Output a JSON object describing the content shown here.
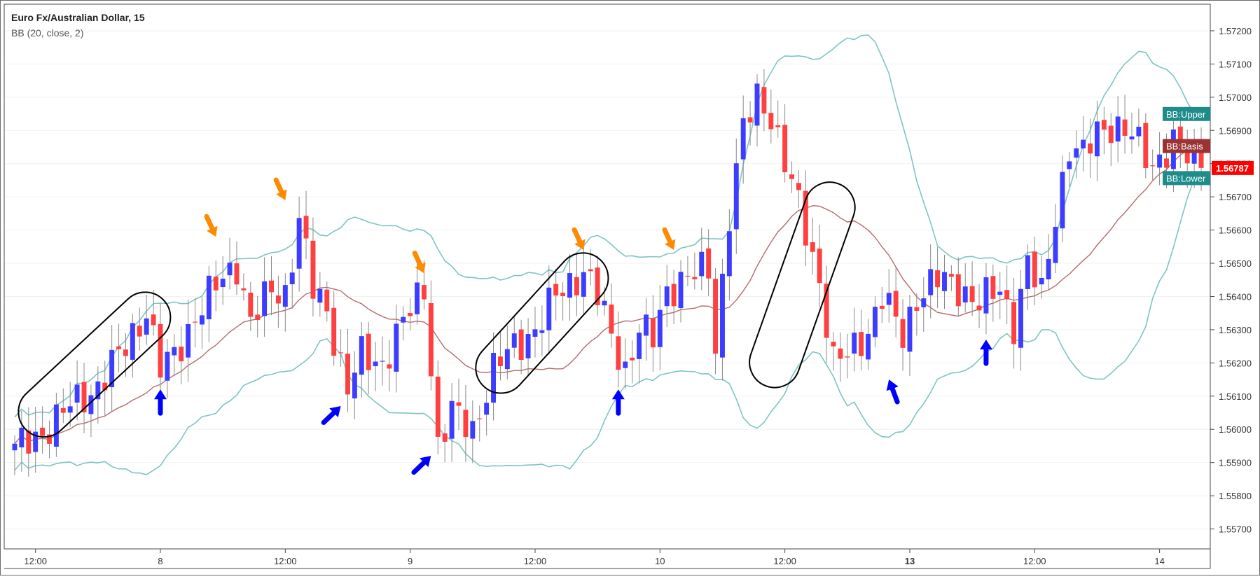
{
  "header": {
    "symbol_title": "Euro Fx/Australian Dollar, 15",
    "indicator_label": "BB (20, close, 2)"
  },
  "colors": {
    "bull_candle": "#3d3dff",
    "bear_candle": "#ff4040",
    "wick": "#8a8a8a",
    "bb_band": "#7ec4c4",
    "bb_basis": "#b56b6b",
    "price_tag": "#ff0000",
    "bb_tag": "#1f8c8c",
    "basis_tag": "#9b3333",
    "arrow_sell": "#ff8a00",
    "arrow_buy": "#0000ff",
    "consolidation_box": "#000000"
  },
  "chart_data": {
    "type": "candlestick",
    "ylim": [
      1.5564,
      1.5728
    ],
    "y_ticks": [
      1.572,
      1.571,
      1.57,
      1.569,
      1.568,
      1.567,
      1.566,
      1.565,
      1.564,
      1.563,
      1.562,
      1.561,
      1.56,
      1.559,
      1.558,
      1.557
    ],
    "y_tick_labels": [
      "1.57200",
      "1.57100",
      "1.57000",
      "1.56900",
      "1.56800",
      "1.56700",
      "1.56600",
      "1.56500",
      "1.56400",
      "1.56300",
      "1.56200",
      "1.56100",
      "1.56000",
      "1.55900",
      "1.55800",
      "1.55700"
    ],
    "x_ticks": [
      {
        "label": "12:00",
        "bold": false,
        "bar": 3
      },
      {
        "label": "8",
        "bold": false,
        "bar": 21
      },
      {
        "label": "12:00",
        "bold": false,
        "bar": 39
      },
      {
        "label": "9",
        "bold": false,
        "bar": 57
      },
      {
        "label": "12:00",
        "bold": false,
        "bar": 75
      },
      {
        "label": "10",
        "bold": false,
        "bar": 93
      },
      {
        "label": "12:00",
        "bold": false,
        "bar": 111
      },
      {
        "label": "13",
        "bold": true,
        "bar": 129
      },
      {
        "label": "12:00",
        "bold": false,
        "bar": 147
      },
      {
        "label": "14",
        "bold": false,
        "bar": 165
      }
    ],
    "bar_count": 172,
    "price_anchors": [
      [
        0,
        1.5594
      ],
      [
        4,
        1.5599
      ],
      [
        8,
        1.5607
      ],
      [
        12,
        1.5613
      ],
      [
        16,
        1.5625
      ],
      [
        19,
        1.5636
      ],
      [
        21,
        1.5618
      ],
      [
        23,
        1.5622
      ],
      [
        26,
        1.5634
      ],
      [
        29,
        1.5643
      ],
      [
        32,
        1.565
      ],
      [
        34,
        1.5632
      ],
      [
        37,
        1.5642
      ],
      [
        39,
        1.5641
      ],
      [
        41,
        1.5663
      ],
      [
        43,
        1.5642
      ],
      [
        45,
        1.5636
      ],
      [
        48,
        1.5612
      ],
      [
        50,
        1.5622
      ],
      [
        53,
        1.562
      ],
      [
        56,
        1.5632
      ],
      [
        59,
        1.5643
      ],
      [
        61,
        1.5595
      ],
      [
        63,
        1.5605
      ],
      [
        66,
        1.56
      ],
      [
        69,
        1.5618
      ],
      [
        72,
        1.5625
      ],
      [
        75,
        1.563
      ],
      [
        78,
        1.564
      ],
      [
        82,
        1.5648
      ],
      [
        84,
        1.564
      ],
      [
        86,
        1.5628
      ],
      [
        88,
        1.5618
      ],
      [
        90,
        1.563
      ],
      [
        92,
        1.5627
      ],
      [
        94,
        1.5642
      ],
      [
        96,
        1.5645
      ],
      [
        100,
        1.5648
      ],
      [
        101,
        1.5625
      ],
      [
        103,
        1.5665
      ],
      [
        105,
        1.569
      ],
      [
        107,
        1.57
      ],
      [
        109,
        1.5695
      ],
      [
        111,
        1.568
      ],
      [
        113,
        1.5667
      ],
      [
        116,
        1.5645
      ],
      [
        118,
        1.562
      ],
      [
        120,
        1.5622
      ],
      [
        123,
        1.563
      ],
      [
        125,
        1.564
      ],
      [
        128,
        1.5628
      ],
      [
        130,
        1.564
      ],
      [
        133,
        1.5645
      ],
      [
        136,
        1.5643
      ],
      [
        139,
        1.5638
      ],
      [
        142,
        1.5642
      ],
      [
        144,
        1.5632
      ],
      [
        146,
        1.565
      ],
      [
        148,
        1.564
      ],
      [
        150,
        1.5665
      ],
      [
        152,
        1.5685
      ],
      [
        154,
        1.5682
      ],
      [
        156,
        1.569
      ],
      [
        158,
        1.5692
      ],
      [
        161,
        1.5688
      ],
      [
        164,
        1.568
      ],
      [
        167,
        1.5686
      ],
      [
        169,
        1.5682
      ],
      [
        171,
        1.5679
      ]
    ],
    "bollinger": {
      "period": 20,
      "source": "close",
      "stddev": 2
    },
    "last_price_label": "1.56787",
    "last_price": 1.56787,
    "band_tags": {
      "upper": "BB:Upper",
      "basis": "BB:Basis",
      "lower": "BB:Lower"
    },
    "annotations": {
      "sell_arrows": [
        {
          "bar": 29,
          "price": 1.5658
        },
        {
          "bar": 39,
          "price": 1.5669
        },
        {
          "bar": 59,
          "price": 1.5647
        },
        {
          "bar": 82,
          "price": 1.5654
        },
        {
          "bar": 95,
          "price": 1.5654
        }
      ],
      "buy_arrows": [
        {
          "bar": 21,
          "price": 1.5612,
          "direction": "up"
        },
        {
          "bar": 47,
          "price": 1.5607,
          "direction": "up-right"
        },
        {
          "bar": 60,
          "price": 1.5592,
          "direction": "up-right"
        },
        {
          "bar": 87,
          "price": 1.5612,
          "direction": "up"
        },
        {
          "bar": 126,
          "price": 1.5615,
          "direction": "up-left"
        },
        {
          "bar": 140,
          "price": 1.5627,
          "direction": "up"
        }
      ],
      "consolidation_boxes": [
        {
          "bar_start": 3,
          "bar_end": 20,
          "price_start": 1.5603,
          "price_end": 1.5636
        },
        {
          "bar_start": 69,
          "bar_end": 83,
          "price_start": 1.5616,
          "price_end": 1.5648
        },
        {
          "bar_start": 109,
          "bar_end": 118,
          "price_start": 1.5617,
          "price_end": 1.567
        }
      ]
    }
  }
}
